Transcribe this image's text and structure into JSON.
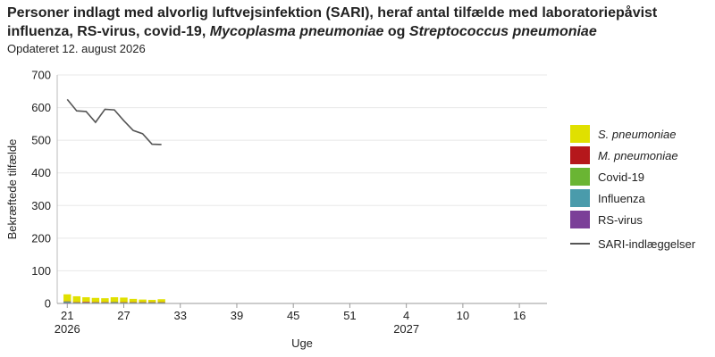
{
  "title": {
    "part1": "Personer indlagt med alvorlig luftvejsinfektion (SARI), heraf antal tilfælde med laboratoriepåvist influenza, RS-virus, covid-19,",
    "part2": "Mycoplasma pneumoniae",
    "part3": "og",
    "part4": "Streptococcus pneumoniae"
  },
  "subtitle": "Opdateret 12. august 2026",
  "colors": {
    "s_pneumoniae": "#e0e000",
    "m_pneumoniae": "#b5171b",
    "covid19": "#6ab533",
    "influenza": "#4a9bab",
    "rs_virus": "#7b3f98",
    "sari_line": "#555555",
    "grid": "#e8e8e8"
  },
  "legend": [
    {
      "key": "s_pneumoniae",
      "label": "S. pneumoniae",
      "italic": true,
      "kind": "box"
    },
    {
      "key": "m_pneumoniae",
      "label": "M. pneumoniae",
      "italic": true,
      "kind": "box"
    },
    {
      "key": "covid19",
      "label": "Covid-19",
      "italic": false,
      "kind": "box"
    },
    {
      "key": "influenza",
      "label": "Influenza",
      "italic": false,
      "kind": "box"
    },
    {
      "key": "rs_virus",
      "label": "RS-virus",
      "italic": false,
      "kind": "box"
    },
    {
      "key": "sari_line",
      "label": "SARI-indlæggelser",
      "italic": false,
      "kind": "line"
    }
  ],
  "chart_data": {
    "type": "bar",
    "xlabel": "Uge",
    "ylabel": "Bekræftede tilfælde",
    "ylim": [
      0,
      700
    ],
    "yticks": [
      0,
      100,
      200,
      300,
      400,
      500,
      600,
      700
    ],
    "grid": true,
    "legend_position": "right",
    "weeks_on_axis": 52,
    "x_ticks": [
      {
        "label": "21",
        "year": "2026"
      },
      {
        "label": "27",
        "year": ""
      },
      {
        "label": "33",
        "year": ""
      },
      {
        "label": "39",
        "year": ""
      },
      {
        "label": "45",
        "year": ""
      },
      {
        "label": "51",
        "year": ""
      },
      {
        "label": "4",
        "year": "2027"
      },
      {
        "label": "10",
        "year": ""
      },
      {
        "label": "16",
        "year": ""
      }
    ],
    "categories": [
      "21",
      "22",
      "23",
      "24",
      "25",
      "26",
      "27",
      "28",
      "29",
      "30",
      "31"
    ],
    "series": [
      {
        "name": "RS-virus",
        "key": "rs_virus",
        "values": [
          2,
          1,
          1,
          1,
          1,
          1,
          1,
          1,
          1,
          1,
          1
        ]
      },
      {
        "name": "Influenza",
        "key": "influenza",
        "values": [
          2,
          1,
          1,
          1,
          1,
          1,
          1,
          1,
          1,
          1,
          1
        ]
      },
      {
        "name": "Covid-19",
        "key": "covid19",
        "values": [
          2,
          1,
          1,
          1,
          1,
          2,
          1,
          1,
          1,
          1,
          1
        ]
      },
      {
        "name": "M. pneumoniae",
        "key": "m_pneumoniae",
        "values": [
          1,
          1,
          2,
          1,
          1,
          1,
          1,
          1,
          1,
          1,
          1
        ]
      },
      {
        "name": "S. pneumoniae",
        "key": "s_pneumoniae",
        "values": [
          21,
          18,
          14,
          13,
          12,
          14,
          14,
          10,
          8,
          7,
          9
        ]
      }
    ],
    "line_series": {
      "name": "SARI-indlæggelser",
      "key": "sari_line",
      "values": [
        625,
        590,
        588,
        555,
        595,
        593,
        560,
        530,
        520,
        488,
        487
      ]
    }
  }
}
